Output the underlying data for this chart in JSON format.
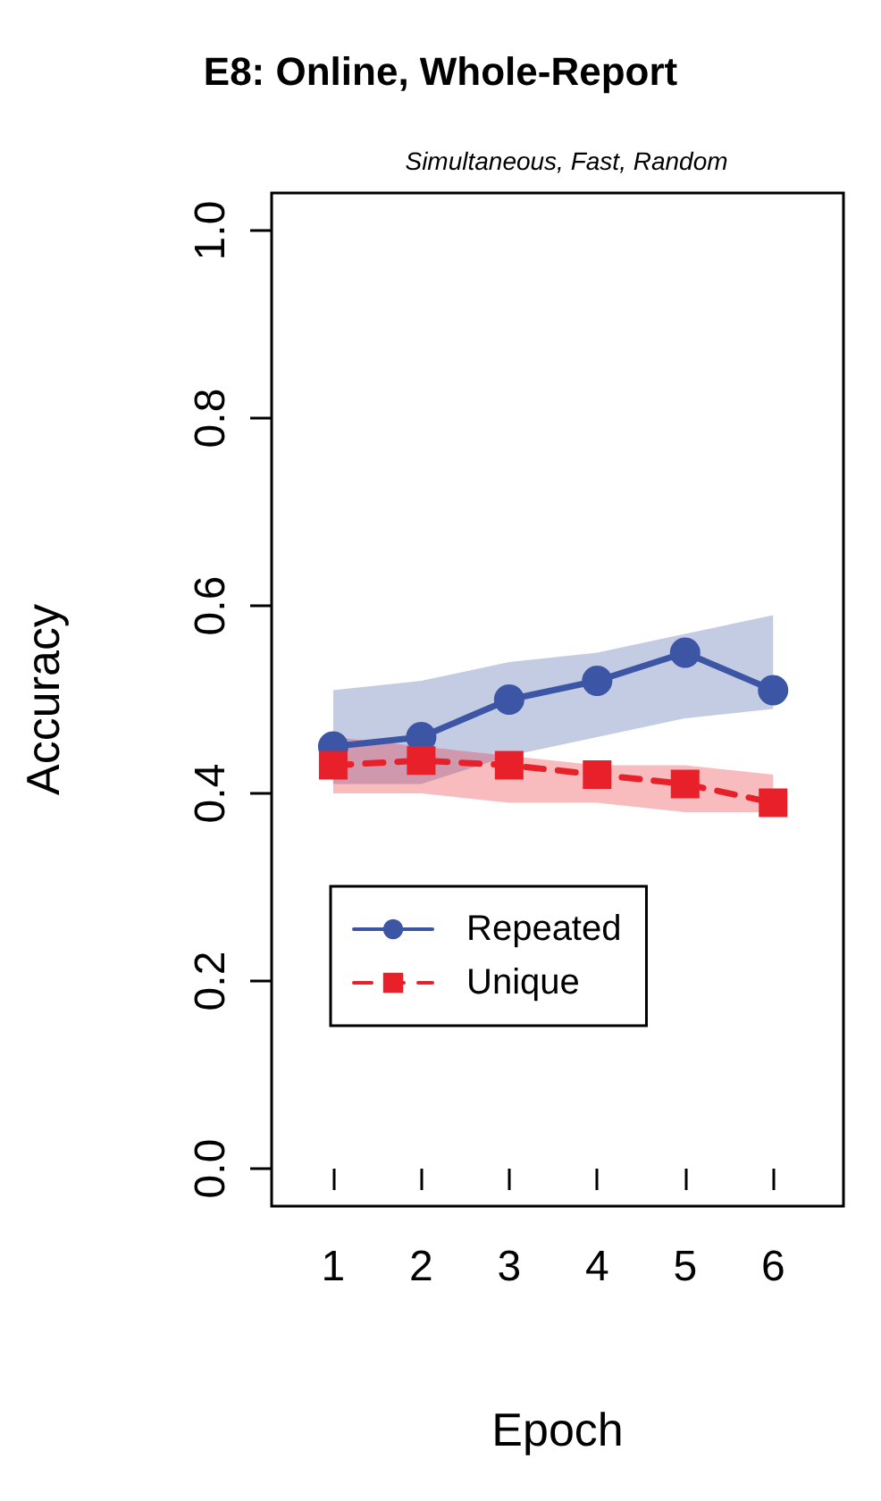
{
  "chart_data": {
    "type": "line",
    "title": "E8: Online, Whole-Report",
    "subtitle": "Simultaneous, Fast, Random",
    "xlabel": "Epoch",
    "ylabel": "Accuracy",
    "x": [
      1,
      2,
      3,
      4,
      5,
      6
    ],
    "series": [
      {
        "name": "Repeated",
        "color": "#3d55a5",
        "marker": "circle",
        "line_style": "solid",
        "values": [
          0.45,
          0.46,
          0.5,
          0.52,
          0.55,
          0.51
        ],
        "lower": [
          0.41,
          0.41,
          0.44,
          0.46,
          0.48,
          0.49
        ],
        "upper": [
          0.51,
          0.52,
          0.54,
          0.55,
          0.57,
          0.59
        ]
      },
      {
        "name": "Unique",
        "color": "#e8202a",
        "marker": "square",
        "line_style": "dashed",
        "values": [
          0.43,
          0.435,
          0.43,
          0.42,
          0.41,
          0.39
        ],
        "lower": [
          0.4,
          0.4,
          0.39,
          0.39,
          0.38,
          0.38
        ],
        "upper": [
          0.46,
          0.45,
          0.44,
          0.43,
          0.43,
          0.42
        ]
      }
    ],
    "xlim": [
      0.3,
      6.8
    ],
    "xticks": [
      1,
      2,
      3,
      4,
      5,
      6
    ],
    "ylim": [
      -0.04,
      1.04
    ],
    "yticks": [
      {
        "value": 0,
        "label": "0.0"
      },
      {
        "value": 0.2,
        "label": "0.2"
      },
      {
        "value": 0.4,
        "label": "0.4"
      },
      {
        "value": 0.6,
        "label": "0.6"
      },
      {
        "value": 0.8,
        "label": "0.8"
      },
      {
        "value": 1,
        "label": "1.0"
      }
    ],
    "grid": false,
    "legend": "bottom left"
  }
}
